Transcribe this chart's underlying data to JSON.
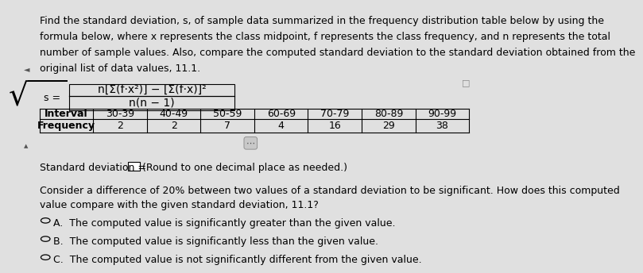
{
  "bg_color": "#e0e0e0",
  "text_color": "#000000",
  "title_lines": [
    "Find the standard deviation, s, of sample data summarized in the frequency distribution table below by using the",
    "formula below, where x represents the class midpoint, f represents the class frequency, and n represents the total",
    "number of sample values. Also, compare the computed standard deviation to the standard deviation obtained from the",
    "original list of data values, 11.1."
  ],
  "formula_numerator": "n[Σ(f·x²)] − [Σ(f·x)]²",
  "formula_denominator": "n(n − 1)",
  "table_headers": [
    "Interval",
    "30-39",
    "40-49",
    "50-59",
    "60-69",
    "70-79",
    "80-89",
    "90-99"
  ],
  "table_row_label": "Frequency",
  "table_values": [
    2,
    2,
    7,
    4,
    16,
    29,
    38
  ],
  "compare_line1": "Consider a difference of 20% between two values of a standard deviation to be significant. How does this computed",
  "compare_line2": "value compare with the given standard deviation, 11.1?",
  "option_A": "A.  The computed value is significantly greater than the given value.",
  "option_B": "B.  The computed value is significantly less than the given value.",
  "option_C": "C.  The computed value is not significantly different from the given value.",
  "font_size_body": 9.0,
  "font_size_formula": 10.0
}
